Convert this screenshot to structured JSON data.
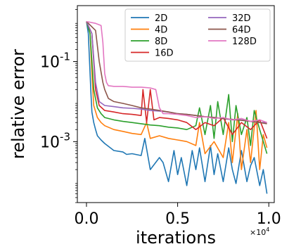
{
  "chart_data": {
    "type": "line",
    "title": "",
    "xlabel": "iterations",
    "ylabel": "relative error",
    "x_offset_text": "×10^4",
    "xscale": "linear",
    "yscale": "log",
    "xlim": [
      -0.05,
      1.03
    ],
    "ylim": [
      3e-05,
      2.5
    ],
    "x_ticks": [
      0.0,
      0.5,
      1.0
    ],
    "x_tick_labels": [
      "0.0",
      "0.5",
      "1.0"
    ],
    "y_ticks": [
      0.1,
      0.001
    ],
    "y_tick_labels": [
      "10^-1",
      "10^-3"
    ],
    "grid": false,
    "legend": {
      "placement": "top-right",
      "columns": 2
    },
    "series": [
      {
        "name": "2D",
        "color": "#1f77b4",
        "x": [
          0.0,
          0.01,
          0.02,
          0.025,
          0.03,
          0.04,
          0.05,
          0.06,
          0.08,
          0.1,
          0.15,
          0.2,
          0.22,
          0.25,
          0.3,
          0.32,
          0.35,
          0.4,
          0.42,
          0.45,
          0.48,
          0.5,
          0.52,
          0.55,
          0.58,
          0.6,
          0.62,
          0.65,
          0.68,
          0.7,
          0.72,
          0.75,
          0.78,
          0.8,
          0.82,
          0.85,
          0.88,
          0.9,
          0.92,
          0.95,
          0.97,
          0.99
        ],
        "y": [
          1.0,
          0.5,
          0.05,
          0.015,
          0.0055,
          0.003,
          0.002,
          0.0014,
          0.0011,
          0.0009,
          0.0006,
          0.00055,
          0.00048,
          0.0005,
          0.00045,
          0.0012,
          0.0002,
          0.0004,
          0.0003,
          0.0001,
          0.0006,
          0.00015,
          0.0004,
          8e-05,
          0.0006,
          0.0002,
          0.0007,
          0.0001,
          0.0008,
          0.00015,
          0.0005,
          0.0001,
          0.0007,
          0.0002,
          9e-05,
          0.0006,
          0.0001,
          0.00025,
          0.0004,
          8e-05,
          0.0002,
          5e-05
        ]
      },
      {
        "name": "4D",
        "color": "#ff7f0e",
        "x": [
          0.0,
          0.02,
          0.03,
          0.04,
          0.06,
          0.08,
          0.1,
          0.15,
          0.2,
          0.25,
          0.3,
          0.33,
          0.35,
          0.4,
          0.45,
          0.5,
          0.55,
          0.6,
          0.62,
          0.65,
          0.7,
          0.75,
          0.78,
          0.8,
          0.83,
          0.85,
          0.88,
          0.9,
          0.93,
          0.95,
          0.97,
          0.99
        ],
        "y": [
          1.0,
          0.5,
          0.05,
          0.008,
          0.004,
          0.003,
          0.0025,
          0.002,
          0.0018,
          0.0016,
          0.0015,
          0.003,
          0.0012,
          0.0014,
          0.0012,
          0.0011,
          0.001,
          0.0008,
          0.003,
          0.0005,
          0.001,
          0.0004,
          0.003,
          0.0003,
          0.005,
          0.0002,
          0.002,
          0.0003,
          0.006,
          0.0002,
          0.0015,
          0.0007
        ]
      },
      {
        "name": "8D",
        "color": "#2ca02c",
        "x": [
          0.0,
          0.02,
          0.04,
          0.06,
          0.08,
          0.1,
          0.15,
          0.2,
          0.25,
          0.3,
          0.35,
          0.4,
          0.45,
          0.5,
          0.55,
          0.6,
          0.62,
          0.65,
          0.68,
          0.7,
          0.72,
          0.75,
          0.78,
          0.8,
          0.82,
          0.85,
          0.88,
          0.9,
          0.92,
          0.95,
          0.97,
          0.99
        ],
        "y": [
          1.0,
          0.5,
          0.02,
          0.007,
          0.005,
          0.004,
          0.0035,
          0.0032,
          0.003,
          0.0028,
          0.0026,
          0.0025,
          0.0023,
          0.0022,
          0.002,
          0.0025,
          0.007,
          0.0015,
          0.008,
          0.0012,
          0.01,
          0.0015,
          0.015,
          0.001,
          0.008,
          0.0015,
          0.004,
          0.0008,
          0.006,
          0.002,
          0.001,
          0.0005
        ]
      },
      {
        "name": "16D",
        "color": "#d62728",
        "x": [
          0.0,
          0.03,
          0.05,
          0.07,
          0.1,
          0.15,
          0.2,
          0.25,
          0.3,
          0.31,
          0.33,
          0.35,
          0.37,
          0.4,
          0.45,
          0.5,
          0.55,
          0.6,
          0.65,
          0.7,
          0.75,
          0.8,
          0.85,
          0.9,
          0.95,
          0.99
        ],
        "y": [
          1.0,
          0.5,
          0.02,
          0.008,
          0.006,
          0.0055,
          0.005,
          0.0048,
          0.0045,
          0.02,
          0.003,
          0.02,
          0.0035,
          0.004,
          0.0038,
          0.0035,
          0.003,
          0.002,
          0.003,
          0.0025,
          0.004,
          0.0015,
          0.003,
          0.002,
          0.0035,
          0.0012
        ]
      },
      {
        "name": "32D",
        "color": "#9467bd",
        "x": [
          0.0,
          0.03,
          0.05,
          0.07,
          0.1,
          0.15,
          0.2,
          0.25,
          0.3,
          0.35,
          0.4,
          0.45,
          0.5,
          0.55,
          0.6,
          0.65,
          0.7,
          0.75,
          0.8,
          0.85,
          0.9,
          0.95,
          0.99
        ],
        "y": [
          1.0,
          0.5,
          0.03,
          0.01,
          0.008,
          0.0075,
          0.007,
          0.0068,
          0.0065,
          0.006,
          0.0058,
          0.0055,
          0.005,
          0.0048,
          0.0045,
          0.0042,
          0.004,
          0.0038,
          0.0035,
          0.0035,
          0.0032,
          0.003,
          0.003
        ]
      },
      {
        "name": "64D",
        "color": "#8c564b",
        "x": [
          0.0,
          0.05,
          0.07,
          0.09,
          0.1,
          0.12,
          0.15,
          0.2,
          0.25,
          0.3,
          0.35,
          0.4,
          0.45,
          0.5,
          0.55,
          0.6,
          0.65,
          0.7,
          0.75,
          0.8,
          0.85,
          0.9,
          0.95,
          0.99
        ],
        "y": [
          1.0,
          0.6,
          0.1,
          0.03,
          0.02,
          0.012,
          0.01,
          0.009,
          0.008,
          0.007,
          0.0065,
          0.006,
          0.0055,
          0.005,
          0.0048,
          0.0045,
          0.0042,
          0.004,
          0.0038,
          0.0036,
          0.0034,
          0.0032,
          0.003,
          0.0028
        ]
      },
      {
        "name": "128D",
        "color": "#e377c2",
        "x": [
          0.0,
          0.05,
          0.08,
          0.09,
          0.1,
          0.11,
          0.12,
          0.15,
          0.2,
          0.25,
          0.3,
          0.35,
          0.38,
          0.4,
          0.42,
          0.45,
          0.5,
          0.55,
          0.6,
          0.65,
          0.7,
          0.75,
          0.8,
          0.85,
          0.9,
          0.95,
          0.99
        ],
        "y": [
          1.0,
          0.9,
          0.8,
          0.3,
          0.05,
          0.03,
          0.025,
          0.024,
          0.024,
          0.023,
          0.023,
          0.022,
          0.02,
          0.007,
          0.005,
          0.005,
          0.0048,
          0.0045,
          0.004,
          0.0042,
          0.0038,
          0.004,
          0.0035,
          0.0038,
          0.0032,
          0.0035,
          0.003
        ]
      }
    ]
  }
}
